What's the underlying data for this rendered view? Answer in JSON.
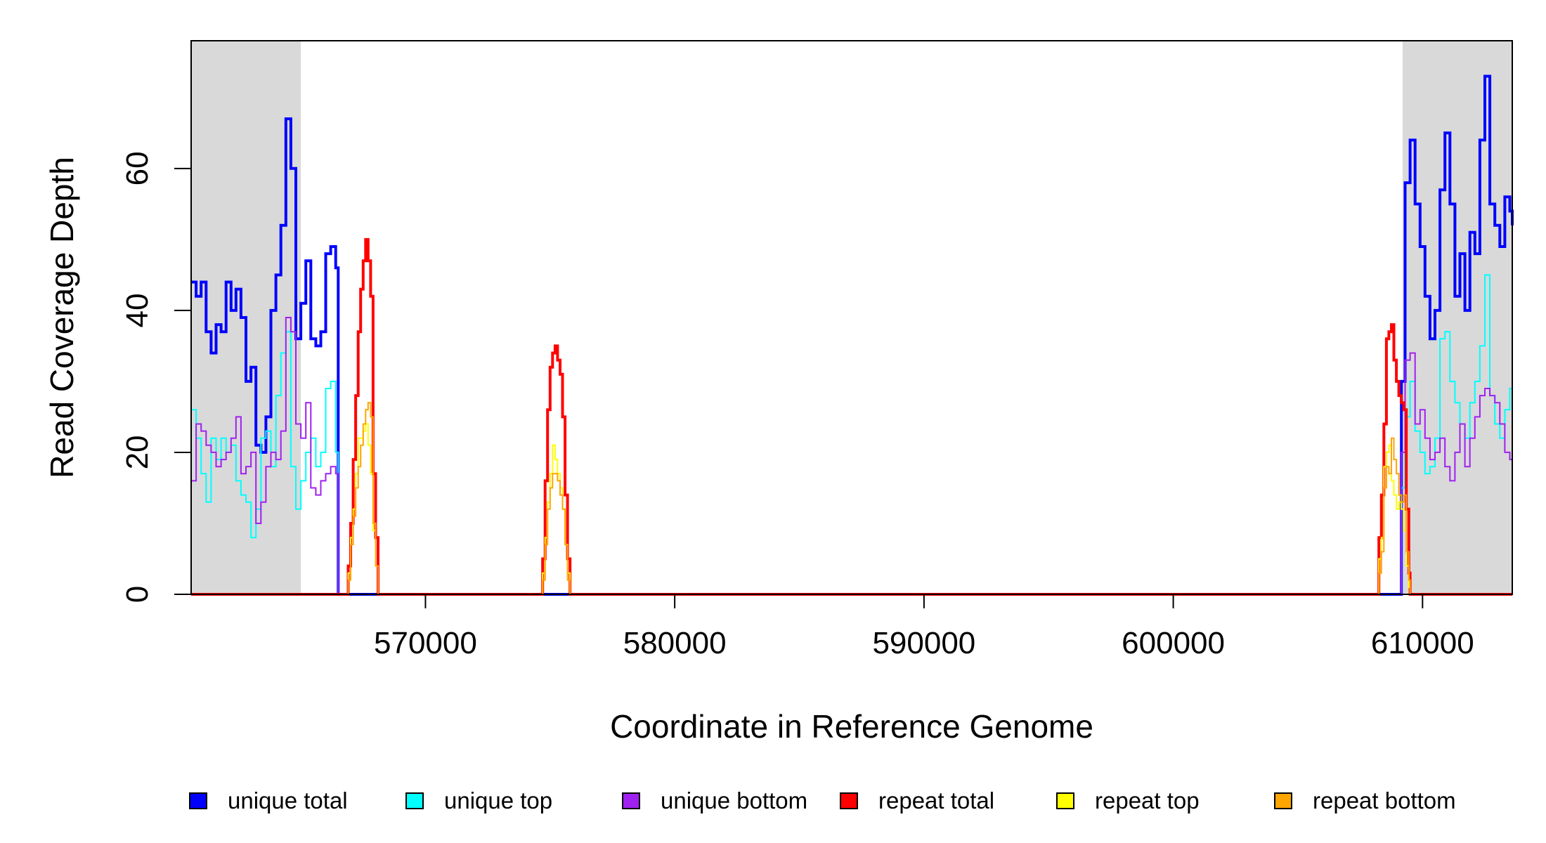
{
  "chart_data": {
    "type": "line",
    "title": "",
    "xlabel": "Coordinate in Reference Genome",
    "ylabel": "Read Coverage Depth",
    "xlim": [
      560600,
      613600
    ],
    "ylim": [
      0,
      78
    ],
    "x_ticks": [
      570000,
      580000,
      590000,
      600000,
      610000
    ],
    "x_tick_labels": [
      "570000",
      "580000",
      "590000",
      "600000",
      "610000"
    ],
    "y_ticks": [
      0,
      20,
      40,
      60
    ],
    "y_tick_labels": [
      "0",
      "20",
      "40",
      "60"
    ],
    "shaded_regions": [
      {
        "x_start": 560600,
        "x_end": 565000,
        "color": "#d9d9d9"
      },
      {
        "x_start": 609200,
        "x_end": 613600,
        "color": "#d9d9d9"
      }
    ],
    "legend_position": "bottom",
    "series": [
      {
        "name": "unique total",
        "color": "#0000ff",
        "stroke_width": 4,
        "points": [
          [
            560600,
            44
          ],
          [
            560800,
            42
          ],
          [
            561000,
            44
          ],
          [
            561200,
            37
          ],
          [
            561400,
            34
          ],
          [
            561600,
            38
          ],
          [
            561800,
            37
          ],
          [
            562000,
            44
          ],
          [
            562200,
            40
          ],
          [
            562400,
            43
          ],
          [
            562600,
            39
          ],
          [
            562800,
            30
          ],
          [
            563000,
            32
          ],
          [
            563200,
            21
          ],
          [
            563400,
            20
          ],
          [
            563600,
            25
          ],
          [
            563800,
            40
          ],
          [
            564000,
            45
          ],
          [
            564200,
            52
          ],
          [
            564400,
            67
          ],
          [
            564600,
            60
          ],
          [
            564800,
            36
          ],
          [
            565000,
            41
          ],
          [
            565200,
            47
          ],
          [
            565400,
            36
          ],
          [
            565600,
            35
          ],
          [
            565800,
            37
          ],
          [
            566000,
            48
          ],
          [
            566200,
            49
          ],
          [
            566400,
            46
          ],
          [
            566500,
            0
          ],
          [
            609100,
            0
          ],
          [
            609150,
            30
          ],
          [
            609300,
            58
          ],
          [
            609500,
            64
          ],
          [
            609700,
            55
          ],
          [
            609900,
            49
          ],
          [
            610100,
            42
          ],
          [
            610300,
            36
          ],
          [
            610500,
            40
          ],
          [
            610700,
            57
          ],
          [
            610900,
            65
          ],
          [
            611100,
            55
          ],
          [
            611300,
            42
          ],
          [
            611500,
            48
          ],
          [
            611700,
            40
          ],
          [
            611900,
            51
          ],
          [
            612100,
            48
          ],
          [
            612300,
            64
          ],
          [
            612500,
            73
          ],
          [
            612700,
            55
          ],
          [
            612900,
            52
          ],
          [
            613100,
            49
          ],
          [
            613300,
            56
          ],
          [
            613500,
            54
          ],
          [
            613600,
            52
          ]
        ]
      },
      {
        "name": "unique top",
        "color": "#00ffff",
        "stroke_width": 2,
        "points": [
          [
            560600,
            26
          ],
          [
            560800,
            22
          ],
          [
            561000,
            17
          ],
          [
            561200,
            13
          ],
          [
            561400,
            22
          ],
          [
            561600,
            19
          ],
          [
            561800,
            22
          ],
          [
            562000,
            20
          ],
          [
            562200,
            21
          ],
          [
            562400,
            16
          ],
          [
            562600,
            14
          ],
          [
            562800,
            13
          ],
          [
            563000,
            8
          ],
          [
            563200,
            12
          ],
          [
            563400,
            22
          ],
          [
            563600,
            23
          ],
          [
            563800,
            18
          ],
          [
            564000,
            28
          ],
          [
            564200,
            34
          ],
          [
            564400,
            37
          ],
          [
            564600,
            18
          ],
          [
            564800,
            12
          ],
          [
            565000,
            16
          ],
          [
            565200,
            20
          ],
          [
            565400,
            22
          ],
          [
            565600,
            18
          ],
          [
            565800,
            20
          ],
          [
            566000,
            29
          ],
          [
            566200,
            30
          ],
          [
            566400,
            20
          ],
          [
            566500,
            0
          ],
          [
            609100,
            0
          ],
          [
            609150,
            15
          ],
          [
            609300,
            25
          ],
          [
            609500,
            30
          ],
          [
            609700,
            23
          ],
          [
            609900,
            20
          ],
          [
            610100,
            17
          ],
          [
            610300,
            18
          ],
          [
            610500,
            22
          ],
          [
            610700,
            36
          ],
          [
            610900,
            37
          ],
          [
            611100,
            30
          ],
          [
            611300,
            27
          ],
          [
            611500,
            24
          ],
          [
            611700,
            22
          ],
          [
            611900,
            27
          ],
          [
            612100,
            30
          ],
          [
            612300,
            35
          ],
          [
            612500,
            45
          ],
          [
            612700,
            28
          ],
          [
            612900,
            24
          ],
          [
            613100,
            22
          ],
          [
            613300,
            26
          ],
          [
            613500,
            29
          ],
          [
            613600,
            30
          ]
        ]
      },
      {
        "name": "unique bottom",
        "color": "#a020f0",
        "stroke_width": 2,
        "points": [
          [
            560600,
            16
          ],
          [
            560800,
            24
          ],
          [
            561000,
            23
          ],
          [
            561200,
            21
          ],
          [
            561400,
            20
          ],
          [
            561600,
            18
          ],
          [
            561800,
            19
          ],
          [
            562000,
            20
          ],
          [
            562200,
            22
          ],
          [
            562400,
            25
          ],
          [
            562600,
            17
          ],
          [
            562800,
            18
          ],
          [
            563000,
            20
          ],
          [
            563200,
            10
          ],
          [
            563400,
            13
          ],
          [
            563600,
            18
          ],
          [
            563800,
            20
          ],
          [
            564000,
            19
          ],
          [
            564200,
            23
          ],
          [
            564400,
            39
          ],
          [
            564600,
            37
          ],
          [
            564800,
            24
          ],
          [
            565000,
            22
          ],
          [
            565200,
            27
          ],
          [
            565400,
            15
          ],
          [
            565600,
            14
          ],
          [
            565800,
            16
          ],
          [
            566000,
            17
          ],
          [
            566200,
            18
          ],
          [
            566400,
            17
          ],
          [
            566500,
            0
          ],
          [
            609100,
            0
          ],
          [
            609150,
            20
          ],
          [
            609300,
            33
          ],
          [
            609500,
            34
          ],
          [
            609700,
            24
          ],
          [
            609900,
            26
          ],
          [
            610100,
            22
          ],
          [
            610300,
            19
          ],
          [
            610500,
            20
          ],
          [
            610700,
            22
          ],
          [
            610900,
            18
          ],
          [
            611100,
            16
          ],
          [
            611300,
            20
          ],
          [
            611500,
            24
          ],
          [
            611700,
            18
          ],
          [
            611900,
            22
          ],
          [
            612100,
            25
          ],
          [
            612300,
            28
          ],
          [
            612500,
            29
          ],
          [
            612700,
            28
          ],
          [
            612900,
            27
          ],
          [
            613100,
            24
          ],
          [
            613300,
            20
          ],
          [
            613500,
            19
          ],
          [
            613600,
            24
          ]
        ]
      },
      {
        "name": "repeat total",
        "color": "#ff0000",
        "stroke_width": 4,
        "points": [
          [
            560600,
            0
          ],
          [
            566800,
            0
          ],
          [
            566900,
            4
          ],
          [
            567000,
            10
          ],
          [
            567100,
            19
          ],
          [
            567200,
            28
          ],
          [
            567300,
            37
          ],
          [
            567400,
            43
          ],
          [
            567500,
            47
          ],
          [
            567600,
            50
          ],
          [
            567700,
            47
          ],
          [
            567800,
            42
          ],
          [
            567900,
            17
          ],
          [
            568000,
            8
          ],
          [
            568100,
            0
          ],
          [
            574600,
            0
          ],
          [
            574700,
            5
          ],
          [
            574800,
            16
          ],
          [
            574900,
            26
          ],
          [
            575000,
            32
          ],
          [
            575100,
            34
          ],
          [
            575200,
            35
          ],
          [
            575300,
            33
          ],
          [
            575400,
            31
          ],
          [
            575500,
            25
          ],
          [
            575600,
            14
          ],
          [
            575700,
            5
          ],
          [
            575800,
            0
          ],
          [
            608200,
            0
          ],
          [
            608250,
            8
          ],
          [
            608350,
            14
          ],
          [
            608450,
            24
          ],
          [
            608550,
            36
          ],
          [
            608650,
            37
          ],
          [
            608750,
            38
          ],
          [
            608850,
            33
          ],
          [
            608950,
            30
          ],
          [
            609050,
            28
          ],
          [
            609150,
            27
          ],
          [
            609250,
            26
          ],
          [
            609350,
            12
          ],
          [
            609450,
            3
          ],
          [
            609500,
            0
          ],
          [
            613600,
            0
          ]
        ]
      },
      {
        "name": "repeat top",
        "color": "#ffff00",
        "stroke_width": 2,
        "points": [
          [
            560600,
            0
          ],
          [
            566800,
            0
          ],
          [
            566900,
            3
          ],
          [
            567000,
            8
          ],
          [
            567100,
            12
          ],
          [
            567200,
            17
          ],
          [
            567300,
            22
          ],
          [
            567400,
            22
          ],
          [
            567500,
            23
          ],
          [
            567600,
            24
          ],
          [
            567700,
            21
          ],
          [
            567800,
            17
          ],
          [
            567900,
            9
          ],
          [
            568000,
            4
          ],
          [
            568100,
            0
          ],
          [
            574600,
            0
          ],
          [
            574700,
            3
          ],
          [
            574800,
            8
          ],
          [
            574900,
            13
          ],
          [
            575000,
            17
          ],
          [
            575100,
            21
          ],
          [
            575200,
            19
          ],
          [
            575300,
            17
          ],
          [
            575400,
            15
          ],
          [
            575500,
            12
          ],
          [
            575600,
            7
          ],
          [
            575700,
            3
          ],
          [
            575800,
            0
          ],
          [
            608200,
            0
          ],
          [
            608250,
            5
          ],
          [
            608350,
            8
          ],
          [
            608450,
            18
          ],
          [
            608550,
            20
          ],
          [
            608650,
            21
          ],
          [
            608750,
            16
          ],
          [
            608850,
            14
          ],
          [
            608950,
            12
          ],
          [
            609050,
            13
          ],
          [
            609150,
            12
          ],
          [
            609250,
            9
          ],
          [
            609350,
            4
          ],
          [
            609450,
            1
          ],
          [
            609500,
            0
          ],
          [
            613600,
            0
          ]
        ]
      },
      {
        "name": "repeat bottom",
        "color": "#ffa500",
        "stroke_width": 2,
        "points": [
          [
            560600,
            0
          ],
          [
            566800,
            0
          ],
          [
            566900,
            2
          ],
          [
            567000,
            7
          ],
          [
            567100,
            11
          ],
          [
            567200,
            15
          ],
          [
            567300,
            18
          ],
          [
            567400,
            21
          ],
          [
            567500,
            24
          ],
          [
            567600,
            26
          ],
          [
            567700,
            27
          ],
          [
            567800,
            25
          ],
          [
            567900,
            10
          ],
          [
            568000,
            4
          ],
          [
            568100,
            0
          ],
          [
            574600,
            0
          ],
          [
            574700,
            2
          ],
          [
            574800,
            7
          ],
          [
            574900,
            12
          ],
          [
            575000,
            15
          ],
          [
            575100,
            17
          ],
          [
            575200,
            17
          ],
          [
            575300,
            16
          ],
          [
            575400,
            14
          ],
          [
            575500,
            12
          ],
          [
            575600,
            7
          ],
          [
            575700,
            2
          ],
          [
            575800,
            0
          ],
          [
            608200,
            0
          ],
          [
            608250,
            3
          ],
          [
            608350,
            6
          ],
          [
            608450,
            15
          ],
          [
            608550,
            18
          ],
          [
            608650,
            17
          ],
          [
            608750,
            22
          ],
          [
            608850,
            19
          ],
          [
            608950,
            17
          ],
          [
            609050,
            14
          ],
          [
            609150,
            13
          ],
          [
            609250,
            14
          ],
          [
            609350,
            6
          ],
          [
            609450,
            2
          ],
          [
            609500,
            0
          ],
          [
            613600,
            0
          ]
        ]
      }
    ]
  }
}
